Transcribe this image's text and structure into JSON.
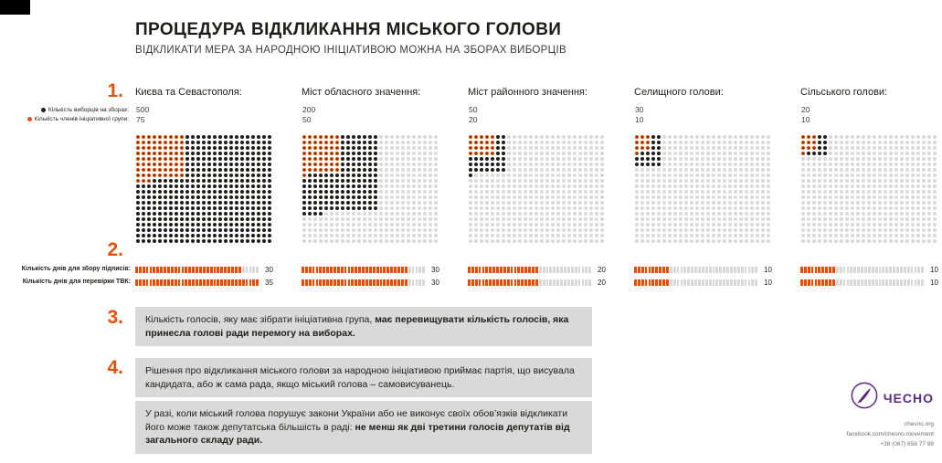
{
  "header": {
    "title": "ПРОЦЕДУРА ВІДКЛИКАННЯ МІСЬКОГО ГОЛОВИ",
    "subtitle": "ВІДКЛИКАТИ МЕРА ЗА НАРОДНОЮ ІНІЦІАТИВОЮ МОЖНА НА ЗБОРАХ ВИБОРЦІВ"
  },
  "colors": {
    "accent_orange": "#e8500a",
    "dot_black": "#1d1d1b",
    "dot_gray": "#d8d8d8",
    "box_gray": "#d9d9d9",
    "brand_purple": "#5b2a84"
  },
  "steps": {
    "s1": "1.",
    "s2": "2.",
    "s3": "3.",
    "s4": "4."
  },
  "legend": {
    "voters": "Кількість виборців на зборах:",
    "initiative": "Кількість членів ініціативної групи:"
  },
  "bar_labels": {
    "collect": "Кількість днів для збору підписів:",
    "check": "Кількість днів для перевірки ТВК:"
  },
  "chart_data": {
    "type": "pictogram-grid",
    "grid": {
      "cols": 25,
      "rows": 20
    },
    "bar_scale_max": 35,
    "legend": [
      "Кількість виборців на зборах (чорні крапки)",
      "Кількість членів ініціативної групи (помаранчеві крапки)"
    ],
    "charts": [
      {
        "label": "Києва та Севастополя:",
        "voters": 500,
        "initiative": 75,
        "voters_block_w": 25,
        "initiative_block_w": 9,
        "days_collect": 30,
        "days_check": 35
      },
      {
        "label": "Міст обласного значення:",
        "voters": 200,
        "initiative": 50,
        "voters_block_w": 14,
        "initiative_block_w": 7,
        "days_collect": 30,
        "days_check": 30
      },
      {
        "label": "Міст районного значення:",
        "voters": 50,
        "initiative": 20,
        "voters_block_w": 7,
        "initiative_block_w": 5,
        "days_collect": 20,
        "days_check": 20
      },
      {
        "label": "Селищного голови:",
        "voters": 30,
        "initiative": 10,
        "voters_block_w": 5,
        "initiative_block_w": 3,
        "days_collect": 10,
        "days_check": 10
      },
      {
        "label": "Сільського голови:",
        "voters": 20,
        "initiative": 10,
        "voters_block_w": 5,
        "initiative_block_w": 3,
        "days_collect": 10,
        "days_check": 10
      }
    ]
  },
  "step3": {
    "normal": "Кількість голосів,  яку має зібрати ініціативна група, ",
    "bold": "має перевищувати кількість голосів, яка принесла голові ради перемогу на виборах."
  },
  "step4": {
    "p1": "Рішення про відкликання міського голови за народною ініціативою приймає партія, що висувала кандидата, або ж сама рада, якщо міський голова – самовисуванець.",
    "p2_normal": "У разі, коли міський голова порушує закони України або не виконує своїх обов’язків відкликати його може також депутатська більшість в раді: ",
    "p2_bold": "не менш як дві третини голосів депутатів від загального складу ради."
  },
  "footer": {
    "brand": "ЧЕСНО",
    "site": "chesno.org",
    "facebook": "facebook.com/chesno.movement",
    "phone": "+38 (067) 658 77 98"
  }
}
